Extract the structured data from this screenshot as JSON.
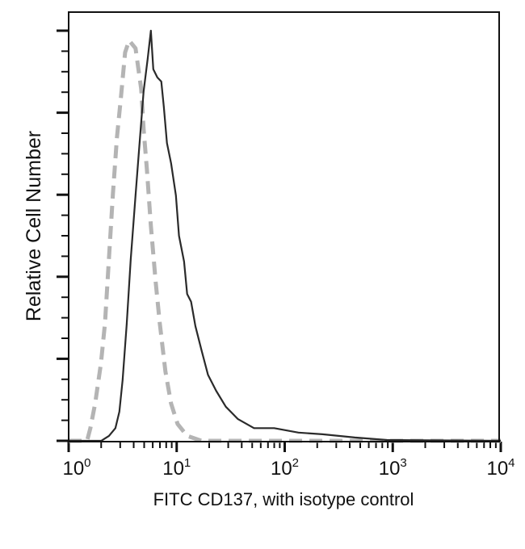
{
  "chart_data": {
    "type": "line",
    "title": "",
    "xlabel": "FITC CD137, with isotype control",
    "ylabel": "Relative Cell Number",
    "x_scale": "log",
    "xlim": [
      1,
      10000
    ],
    "ylim": [
      0,
      105
    ],
    "x_ticks": [
      {
        "base": "10",
        "exp": "0",
        "value": 1
      },
      {
        "base": "10",
        "exp": "1",
        "value": 10
      },
      {
        "base": "10",
        "exp": "2",
        "value": 100
      },
      {
        "base": "10",
        "exp": "3",
        "value": 1000
      },
      {
        "base": "10",
        "exp": "4",
        "value": 10000
      }
    ],
    "y_major_ticks": [
      0,
      20,
      40,
      60,
      80,
      100
    ],
    "y_tick_labels_shown": false,
    "grid": false,
    "legend": "none",
    "series": [
      {
        "style": "solid",
        "color": "#2a2a2a",
        "points": [
          [
            1,
            0
          ],
          [
            2.0,
            0
          ],
          [
            2.36,
            1.2
          ],
          [
            2.71,
            3.1
          ],
          [
            2.95,
            7.1
          ],
          [
            3.16,
            14.8
          ],
          [
            3.45,
            28.5
          ],
          [
            3.75,
            44.1
          ],
          [
            4.16,
            59.8
          ],
          [
            4.53,
            72.6
          ],
          [
            4.94,
            85.2
          ],
          [
            5.39,
            93.1
          ],
          [
            5.77,
            100
          ],
          [
            6.07,
            90.6
          ],
          [
            6.62,
            88.6
          ],
          [
            7.21,
            87.6
          ],
          [
            7.6,
            81.5
          ],
          [
            8.13,
            72.6
          ],
          [
            8.87,
            67.7
          ],
          [
            9.83,
            59.8
          ],
          [
            10.5,
            50
          ],
          [
            11.7,
            43.7
          ],
          [
            12.5,
            35.8
          ],
          [
            13.6,
            33.9
          ],
          [
            14.9,
            28
          ],
          [
            17.0,
            22
          ],
          [
            19.5,
            16.1
          ],
          [
            23.2,
            12.2
          ],
          [
            28.5,
            8.3
          ],
          [
            36.9,
            5.3
          ],
          [
            52,
            3.1
          ],
          [
            80,
            3.1
          ],
          [
            134,
            2.0
          ],
          [
            224,
            1.6
          ],
          [
            446,
            0.8
          ],
          [
            887,
            0.2
          ],
          [
            10000,
            0
          ]
        ]
      },
      {
        "style": "dashed",
        "color": "#b4b4b4",
        "points": [
          [
            1,
            0
          ],
          [
            1.48,
            0
          ],
          [
            1.59,
            3.1
          ],
          [
            1.76,
            9.1
          ],
          [
            1.99,
            18.9
          ],
          [
            2.17,
            28.7
          ],
          [
            2.36,
            44.5
          ],
          [
            2.57,
            60.2
          ],
          [
            2.8,
            74
          ],
          [
            3.05,
            83.9
          ],
          [
            3.33,
            94.7
          ],
          [
            3.63,
            97.6
          ],
          [
            4.16,
            95.7
          ],
          [
            4.69,
            85.8
          ],
          [
            4.94,
            76
          ],
          [
            5.3,
            66.1
          ],
          [
            5.77,
            52.4
          ],
          [
            6.4,
            38.6
          ],
          [
            6.97,
            28.7
          ],
          [
            7.86,
            16.9
          ],
          [
            8.87,
            9.1
          ],
          [
            10.2,
            4.1
          ],
          [
            12.5,
            1.2
          ],
          [
            17,
            0
          ],
          [
            10000,
            0
          ]
        ]
      }
    ]
  }
}
